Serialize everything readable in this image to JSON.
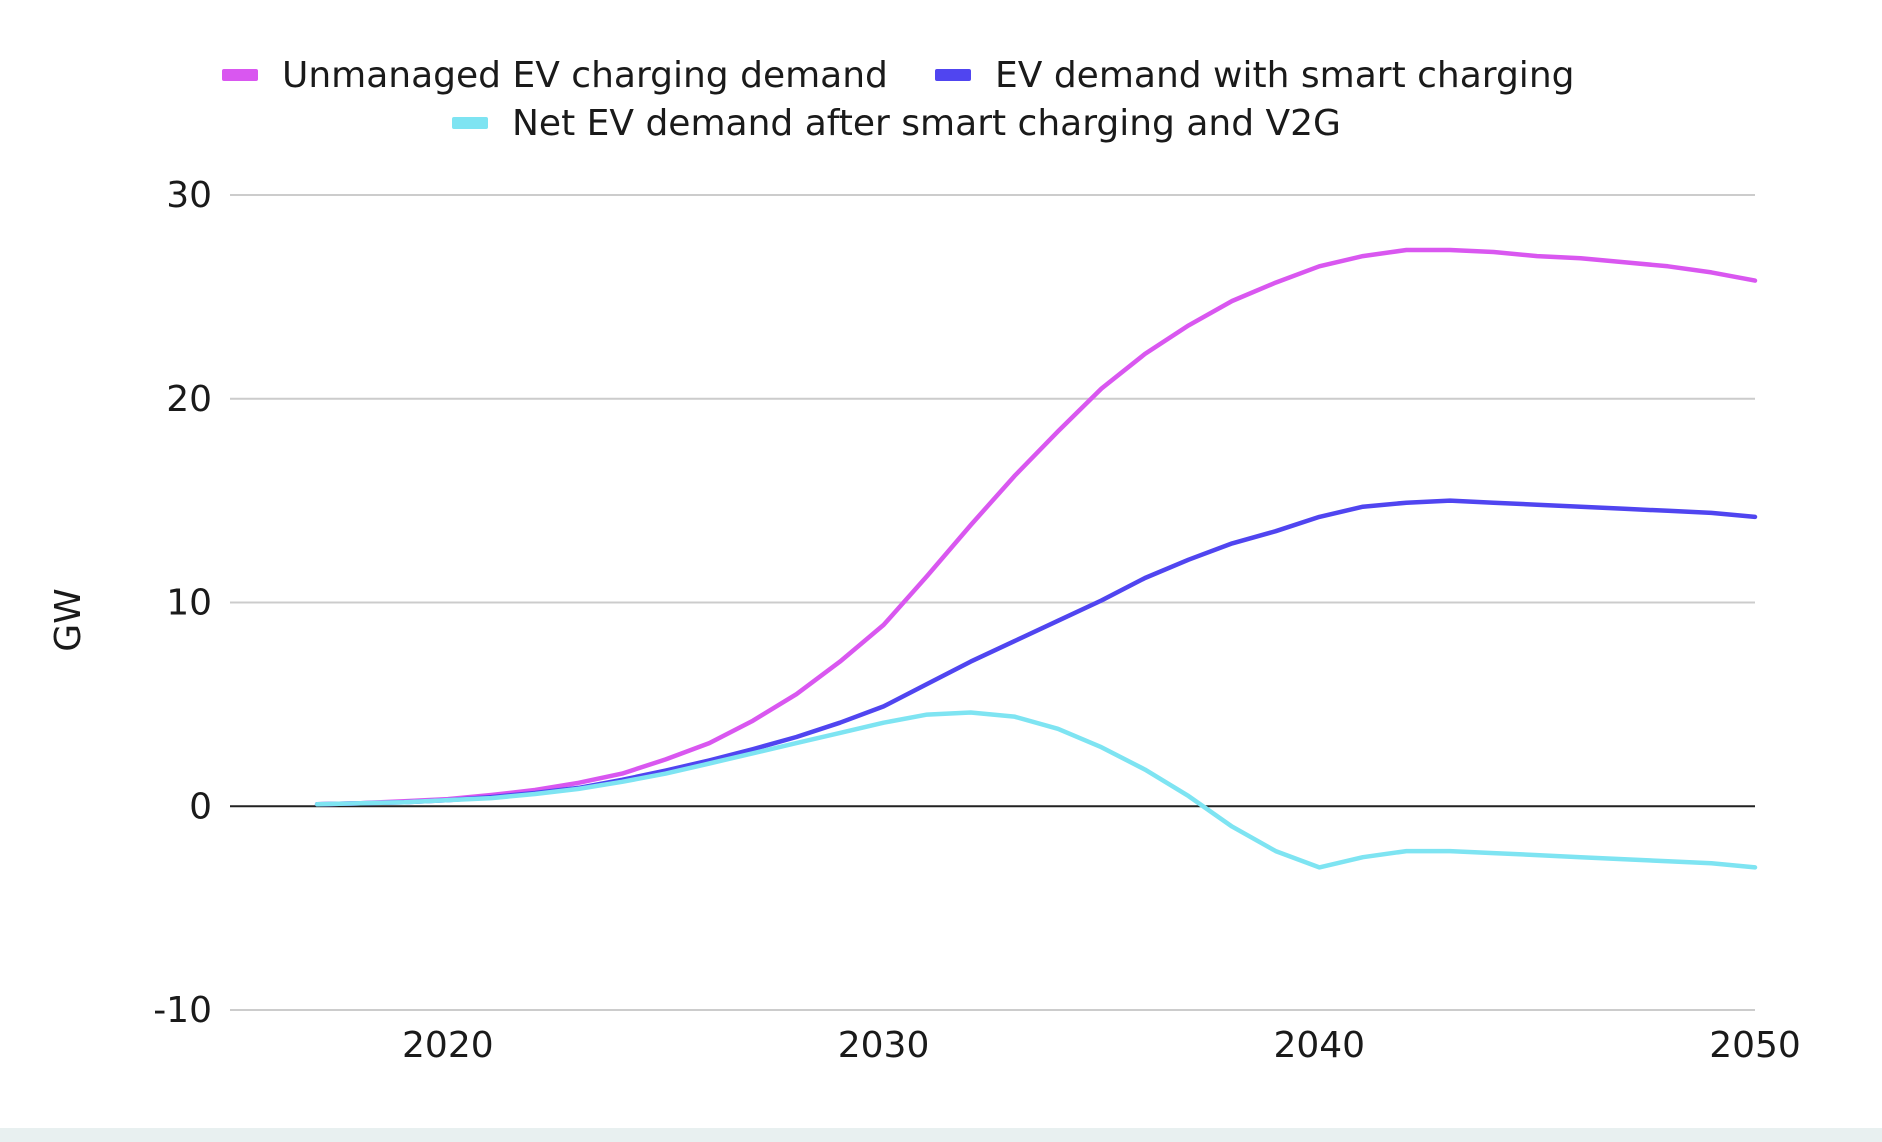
{
  "chart_data": {
    "type": "line",
    "title": "",
    "xlabel": "",
    "ylabel": "GW",
    "xlim": [
      2015,
      2050
    ],
    "ylim": [
      -10,
      30
    ],
    "x_ticks": [
      2020,
      2030,
      2040,
      2050
    ],
    "y_ticks": [
      30,
      20,
      10,
      0,
      -10
    ],
    "grid": true,
    "legend_position": "top-center",
    "x": [
      2017,
      2018,
      2019,
      2020,
      2021,
      2022,
      2023,
      2024,
      2025,
      2026,
      2027,
      2028,
      2029,
      2030,
      2031,
      2032,
      2033,
      2034,
      2035,
      2036,
      2037,
      2038,
      2039,
      2040,
      2041,
      2042,
      2043,
      2044,
      2045,
      2046,
      2047,
      2048,
      2049,
      2050
    ],
    "series": [
      {
        "name": "Unmanaged EV charging demand",
        "color": "#d957f0",
        "values": [
          0.1,
          0.15,
          0.25,
          0.35,
          0.55,
          0.8,
          1.15,
          1.6,
          2.3,
          3.1,
          4.2,
          5.5,
          7.1,
          8.9,
          11.3,
          13.8,
          16.2,
          18.4,
          20.5,
          22.2,
          23.6,
          24.8,
          25.7,
          26.5,
          27.0,
          27.3,
          27.3,
          27.2,
          27.0,
          26.9,
          26.7,
          26.5,
          26.2,
          25.8
        ]
      },
      {
        "name": "EV demand with smart charging",
        "color": "#5045f0",
        "values": [
          0.1,
          0.15,
          0.2,
          0.3,
          0.45,
          0.65,
          0.9,
          1.3,
          1.75,
          2.25,
          2.8,
          3.4,
          4.1,
          4.9,
          6.0,
          7.1,
          8.1,
          9.1,
          10.1,
          11.2,
          12.1,
          12.9,
          13.5,
          14.2,
          14.7,
          14.9,
          15.0,
          14.9,
          14.8,
          14.7,
          14.6,
          14.5,
          14.4,
          14.2
        ]
      },
      {
        "name": "Net EV demand after smart charging and V2G",
        "color": "#7ee4f2",
        "values": [
          0.1,
          0.15,
          0.2,
          0.3,
          0.4,
          0.6,
          0.85,
          1.2,
          1.6,
          2.1,
          2.6,
          3.1,
          3.6,
          4.1,
          4.5,
          4.6,
          4.4,
          3.8,
          2.9,
          1.8,
          0.5,
          -1.0,
          -2.2,
          -3.0,
          -2.5,
          -2.2,
          -2.2,
          -2.3,
          -2.4,
          -2.5,
          -2.6,
          -2.7,
          -2.8,
          -3.0
        ]
      }
    ]
  }
}
